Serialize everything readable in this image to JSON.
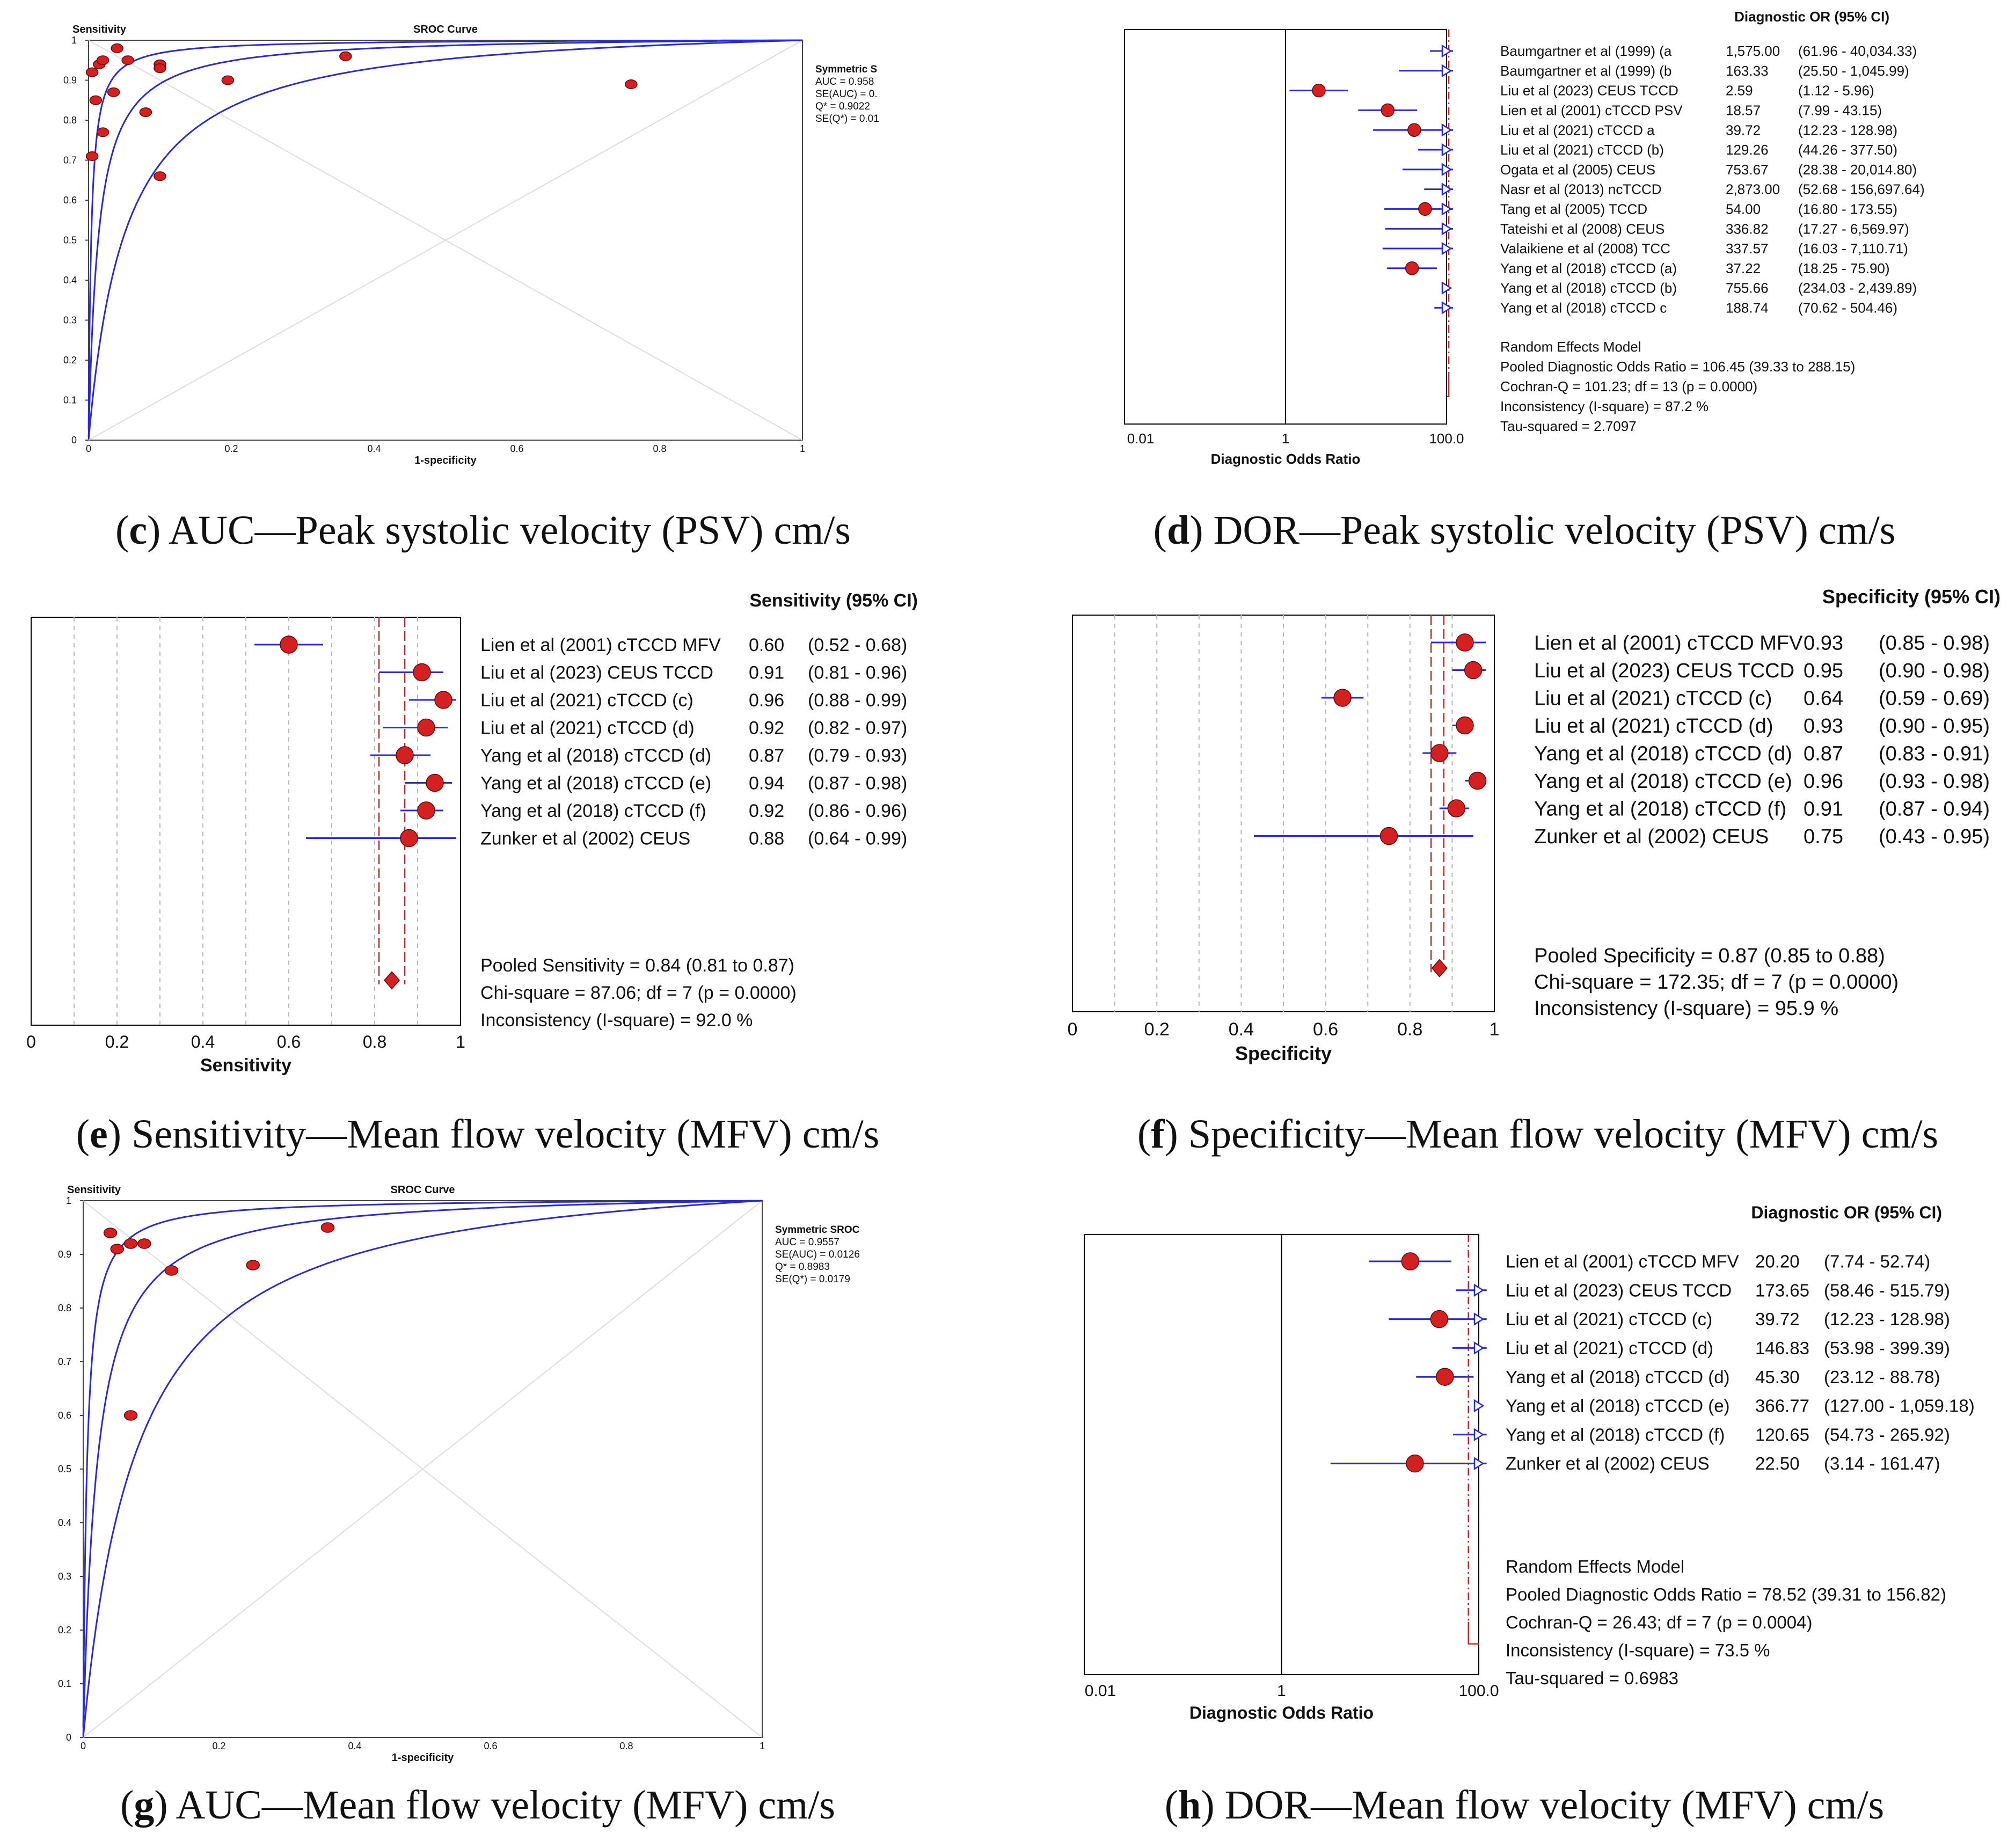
{
  "colors": {
    "curve": "#2a2ad6",
    "point": "#d42020",
    "pointEdge": "#6a0000",
    "grid": "#b8b8b8",
    "refLine": "#d42020",
    "frame": "#000000"
  },
  "captions": {
    "c": {
      "letter": "c",
      "text": "AUC—Peak systolic velocity (PSV) cm/s"
    },
    "d": {
      "letter": "d",
      "text": "DOR—Peak systolic velocity (PSV) cm/s"
    },
    "e": {
      "letter": "e",
      "text": "Sensitivity—Mean flow velocity (MFV) cm/s"
    },
    "f": {
      "letter": "f",
      "text": "Specificity—Mean flow velocity (MFV) cm/s"
    },
    "g": {
      "letter": "g",
      "text": "AUC—Mean flow velocity (MFV) cm/s"
    },
    "h": {
      "letter": "h",
      "text": "DOR—Mean flow velocity (MFV) cm/s"
    }
  },
  "chart_data": [
    {
      "id": "c",
      "type": "scatter",
      "title": "SROC Curve",
      "ylabel": "Sensitivity",
      "xlabel": "1-specificity",
      "xlim": [
        0,
        1
      ],
      "ylim": [
        0,
        1
      ],
      "xticks": [
        "0",
        "0.2",
        "0.4",
        "0.6",
        "0.8",
        "1"
      ],
      "yticks": [
        "0",
        "0.1",
        "0.2",
        "0.3",
        "0.4",
        "0.5",
        "0.6",
        "0.7",
        "0.8",
        "0.9",
        "1"
      ],
      "legend": [
        "Symmetric S",
        "AUC = 0.958",
        "SE(AUC) = 0.",
        "Q* = 0.9022",
        "SE(Q*) = 0.01"
      ],
      "auc": 0.958,
      "points": [
        {
          "x": 0.005,
          "y": 0.92
        },
        {
          "x": 0.015,
          "y": 0.94
        },
        {
          "x": 0.02,
          "y": 0.95
        },
        {
          "x": 0.04,
          "y": 0.98
        },
        {
          "x": 0.055,
          "y": 0.95
        },
        {
          "x": 0.1,
          "y": 0.94
        },
        {
          "x": 0.1,
          "y": 0.93
        },
        {
          "x": 0.01,
          "y": 0.85
        },
        {
          "x": 0.035,
          "y": 0.87
        },
        {
          "x": 0.08,
          "y": 0.82
        },
        {
          "x": 0.02,
          "y": 0.77
        },
        {
          "x": 0.005,
          "y": 0.71
        },
        {
          "x": 0.1,
          "y": 0.66
        },
        {
          "x": 0.195,
          "y": 0.9
        },
        {
          "x": 0.36,
          "y": 0.96
        },
        {
          "x": 0.76,
          "y": 0.89
        }
      ]
    },
    {
      "id": "d",
      "type": "forest",
      "header": "Diagnostic OR (95% CI)",
      "xlabel": "Diagnostic Odds Ratio",
      "xticks": [
        "0.01",
        "1",
        "100.0"
      ],
      "log": true,
      "xmin": 0.01,
      "xmax": 100,
      "pooled": 106.45,
      "studies": [
        {
          "label": "Baumgartner et al (1999) (a",
          "est": "1,575.00",
          "ci": "(61.96 - 40,034.33)",
          "v": 1575,
          "lo": 61.96,
          "hi": 40034.33
        },
        {
          "label": "Baumgartner et al (1999) (b",
          "est": "163.33",
          "ci": "(25.50 - 1,045.99)",
          "v": 163.33,
          "lo": 25.5,
          "hi": 1045.99
        },
        {
          "label": "Liu et al (2023) CEUS TCCD",
          "est": "2.59",
          "ci": "(1.12 - 5.96)",
          "v": 2.59,
          "lo": 1.12,
          "hi": 5.96
        },
        {
          "label": "Lien et al (2001) cTCCD PSV",
          "est": "18.57",
          "ci": "(7.99 - 43.15)",
          "v": 18.57,
          "lo": 7.99,
          "hi": 43.15
        },
        {
          "label": "Liu et al (2021) cTCCD a",
          "est": "39.72",
          "ci": "(12.23 - 128.98)",
          "v": 39.72,
          "lo": 12.23,
          "hi": 128.98
        },
        {
          "label": "Liu et al (2021) cTCCD (b)",
          "est": "129.26",
          "ci": "(44.26 - 377.50)",
          "v": 129.26,
          "lo": 44.26,
          "hi": 377.5
        },
        {
          "label": "Ogata et al (2005) CEUS",
          "est": "753.67",
          "ci": "(28.38 - 20,014.80)",
          "v": 753.67,
          "lo": 28.38,
          "hi": 20014.8
        },
        {
          "label": "Nasr et al (2013) ncTCCD",
          "est": "2,873.00",
          "ci": "(52.68 - 156,697.64)",
          "v": 2873,
          "lo": 52.68,
          "hi": 156697.64
        },
        {
          "label": "Tang et al (2005) TCCD",
          "est": "54.00",
          "ci": "(16.80 - 173.55)",
          "v": 54,
          "lo": 16.8,
          "hi": 173.55
        },
        {
          "label": "Tateishi et al (2008) CEUS",
          "est": "336.82",
          "ci": "(17.27 - 6,569.97)",
          "v": 336.82,
          "lo": 17.27,
          "hi": 6569.97
        },
        {
          "label": "Valaikiene et al (2008) TCC",
          "est": "337.57",
          "ci": "(16.03 - 7,110.71)",
          "v": 337.57,
          "lo": 16.03,
          "hi": 7110.71
        },
        {
          "label": "Yang et al (2018) cTCCD (a)",
          "est": "37.22",
          "ci": "(18.25 - 75.90)",
          "v": 37.22,
          "lo": 18.25,
          "hi": 75.9
        },
        {
          "label": "Yang et al (2018) cTCCD (b)",
          "est": "755.66",
          "ci": "(234.03 - 2,439.89)",
          "v": 755.66,
          "lo": 234.03,
          "hi": 2439.89
        },
        {
          "label": "Yang et al (2018) cTCCD c",
          "est": "188.74",
          "ci": "(70.62 - 504.46)",
          "v": 188.74,
          "lo": 70.62,
          "hi": 504.46
        }
      ],
      "summary": [
        "Random Effects Model",
        "Pooled Diagnostic Odds Ratio = 106.45 (39.33 to 288.15)",
        "Cochran-Q = 101.23; df = 13 (p = 0.0000)",
        "Inconsistency (I-square) = 87.2 %",
        "Tau-squared = 2.7097"
      ]
    },
    {
      "id": "e",
      "type": "forest",
      "header": "Sensitivity (95% CI)",
      "xlabel": "Sensitivity",
      "xticks": [
        "0",
        "0.2",
        "0.4",
        "0.6",
        "0.8",
        "1"
      ],
      "log": false,
      "xmin": 0,
      "xmax": 1,
      "pooled": 0.84,
      "pooledLo": 0.81,
      "pooledHi": 0.87,
      "studies": [
        {
          "label": "Lien et al (2001) cTCCD MFV",
          "est": "0.60",
          "ci": "(0.52 - 0.68)",
          "v": 0.6,
          "lo": 0.52,
          "hi": 0.68
        },
        {
          "label": "Liu et al (2023) CEUS TCCD",
          "est": "0.91",
          "ci": "(0.81 - 0.96)",
          "v": 0.91,
          "lo": 0.81,
          "hi": 0.96
        },
        {
          "label": "Liu et al (2021) cTCCD (c)",
          "est": "0.96",
          "ci": "(0.88 - 0.99)",
          "v": 0.96,
          "lo": 0.88,
          "hi": 0.99
        },
        {
          "label": "Liu et al (2021) cTCCD (d)",
          "est": "0.92",
          "ci": "(0.82 - 0.97)",
          "v": 0.92,
          "lo": 0.82,
          "hi": 0.97
        },
        {
          "label": "Yang et al (2018) cTCCD (d)",
          "est": "0.87",
          "ci": "(0.79 - 0.93)",
          "v": 0.87,
          "lo": 0.79,
          "hi": 0.93
        },
        {
          "label": "Yang et al (2018) cTCCD (e)",
          "est": "0.94",
          "ci": "(0.87 - 0.98)",
          "v": 0.94,
          "lo": 0.87,
          "hi": 0.98
        },
        {
          "label": "Yang et al (2018) cTCCD (f)",
          "est": "0.92",
          "ci": "(0.86 - 0.96)",
          "v": 0.92,
          "lo": 0.86,
          "hi": 0.96
        },
        {
          "label": "Zunker et al (2002) CEUS",
          "est": "0.88",
          "ci": "(0.64 - 0.99)",
          "v": 0.88,
          "lo": 0.64,
          "hi": 0.99
        }
      ],
      "summary": [
        "Pooled Sensitivity = 0.84 (0.81 to 0.87)",
        "Chi-square = 87.06; df =  7 (p = 0.0000)",
        "Inconsistency (I-square) = 92.0 %"
      ]
    },
    {
      "id": "f",
      "type": "forest",
      "header": "Specificity (95% CI)",
      "xlabel": "Specificity",
      "xticks": [
        "0",
        "0.2",
        "0.4",
        "0.6",
        "0.8",
        "1"
      ],
      "log": false,
      "xmin": 0,
      "xmax": 1,
      "pooled": 0.87,
      "pooledLo": 0.85,
      "pooledHi": 0.88,
      "studies": [
        {
          "label": "Lien et al (2001) cTCCD MFV",
          "est": "0.93",
          "ci": "(0.85 - 0.98)",
          "v": 0.93,
          "lo": 0.85,
          "hi": 0.98
        },
        {
          "label": "Liu et al (2023) CEUS TCCD",
          "est": "0.95",
          "ci": "(0.90 - 0.98)",
          "v": 0.95,
          "lo": 0.9,
          "hi": 0.98
        },
        {
          "label": "Liu et al (2021) cTCCD (c)",
          "est": "0.64",
          "ci": "(0.59 - 0.69)",
          "v": 0.64,
          "lo": 0.59,
          "hi": 0.69
        },
        {
          "label": "Liu et al (2021) cTCCD (d)",
          "est": "0.93",
          "ci": "(0.90 - 0.95)",
          "v": 0.93,
          "lo": 0.9,
          "hi": 0.95
        },
        {
          "label": "Yang et al (2018) cTCCD (d)",
          "est": "0.87",
          "ci": "(0.83 - 0.91)",
          "v": 0.87,
          "lo": 0.83,
          "hi": 0.91
        },
        {
          "label": "Yang et al (2018) cTCCD (e)",
          "est": "0.96",
          "ci": "(0.93 - 0.98)",
          "v": 0.96,
          "lo": 0.93,
          "hi": 0.98
        },
        {
          "label": "Yang et al (2018) cTCCD (f)",
          "est": "0.91",
          "ci": "(0.87 - 0.94)",
          "v": 0.91,
          "lo": 0.87,
          "hi": 0.94
        },
        {
          "label": "Zunker et al (2002) CEUS",
          "est": "0.75",
          "ci": "(0.43 - 0.95)",
          "v": 0.75,
          "lo": 0.43,
          "hi": 0.95
        }
      ],
      "summary": [
        "Pooled Specificity = 0.87 (0.85 to 0.88)",
        "Chi-square = 172.35; df =  7 (p = 0.0000)",
        "Inconsistency (I-square) = 95.9 %"
      ]
    },
    {
      "id": "g",
      "type": "scatter",
      "title": "SROC Curve",
      "ylabel": "Sensitivity",
      "xlabel": "1-specificity",
      "xlim": [
        0,
        1
      ],
      "ylim": [
        0,
        1
      ],
      "xticks": [
        "0",
        "0.2",
        "0.4",
        "0.6",
        "0.8",
        "1"
      ],
      "yticks": [
        "0",
        "0.1",
        "0.2",
        "0.3",
        "0.4",
        "0.5",
        "0.6",
        "0.7",
        "0.8",
        "0.9",
        "1"
      ],
      "legend": [
        "Symmetric SROC",
        "AUC = 0.9557",
        "SE(AUC) = 0.0126",
        "Q* = 0.8983",
        "SE(Q*) = 0.0179"
      ],
      "auc": 0.9557,
      "points": [
        {
          "x": 0.04,
          "y": 0.94
        },
        {
          "x": 0.05,
          "y": 0.91
        },
        {
          "x": 0.07,
          "y": 0.92
        },
        {
          "x": 0.09,
          "y": 0.92
        },
        {
          "x": 0.13,
          "y": 0.87
        },
        {
          "x": 0.25,
          "y": 0.88
        },
        {
          "x": 0.36,
          "y": 0.95
        },
        {
          "x": 0.07,
          "y": 0.6
        }
      ]
    },
    {
      "id": "h",
      "type": "forest",
      "header": "Diagnostic OR (95% CI)",
      "xlabel": "Diagnostic Odds Ratio",
      "xticks": [
        "0.01",
        "1",
        "100.0"
      ],
      "log": true,
      "xmin": 0.01,
      "xmax": 100,
      "pooled": 78.52,
      "studies": [
        {
          "label": "Lien et al (2001) cTCCD MFV",
          "est": "20.20",
          "ci": "(7.74 - 52.74)",
          "v": 20.2,
          "lo": 7.74,
          "hi": 52.74
        },
        {
          "label": "Liu et al (2023) CEUS TCCD",
          "est": "173.65",
          "ci": "(58.46 - 515.79)",
          "v": 173.65,
          "lo": 58.46,
          "hi": 515.79
        },
        {
          "label": "Liu et al (2021) cTCCD (c)",
          "est": "39.72",
          "ci": "(12.23 - 128.98)",
          "v": 39.72,
          "lo": 12.23,
          "hi": 128.98
        },
        {
          "label": "Liu et al (2021) cTCCD (d)",
          "est": "146.83",
          "ci": "(53.98 - 399.39)",
          "v": 146.83,
          "lo": 53.98,
          "hi": 399.39
        },
        {
          "label": "Yang et al (2018) cTCCD (d)",
          "est": "45.30",
          "ci": "(23.12 - 88.78)",
          "v": 45.3,
          "lo": 23.12,
          "hi": 88.78
        },
        {
          "label": "Yang et al (2018) cTCCD (e)",
          "est": "366.77",
          "ci": "(127.00 - 1,059.18)",
          "v": 366.77,
          "lo": 127,
          "hi": 1059.18
        },
        {
          "label": "Yang et al (2018) cTCCD (f)",
          "est": "120.65",
          "ci": "(54.73 - 265.92)",
          "v": 120.65,
          "lo": 54.73,
          "hi": 265.92
        },
        {
          "label": "Zunker et al (2002) CEUS",
          "est": "22.50",
          "ci": "(3.14 - 161.47)",
          "v": 22.5,
          "lo": 3.14,
          "hi": 161.47
        }
      ],
      "summary": [
        "Random Effects Model",
        "Pooled Diagnostic Odds Ratio = 78.52 (39.31 to 156.82)",
        "Cochran-Q = 26.43; df =  7 (p = 0.0004)",
        "Inconsistency (I-square) = 73.5 %",
        "Tau-squared = 0.6983"
      ]
    }
  ]
}
